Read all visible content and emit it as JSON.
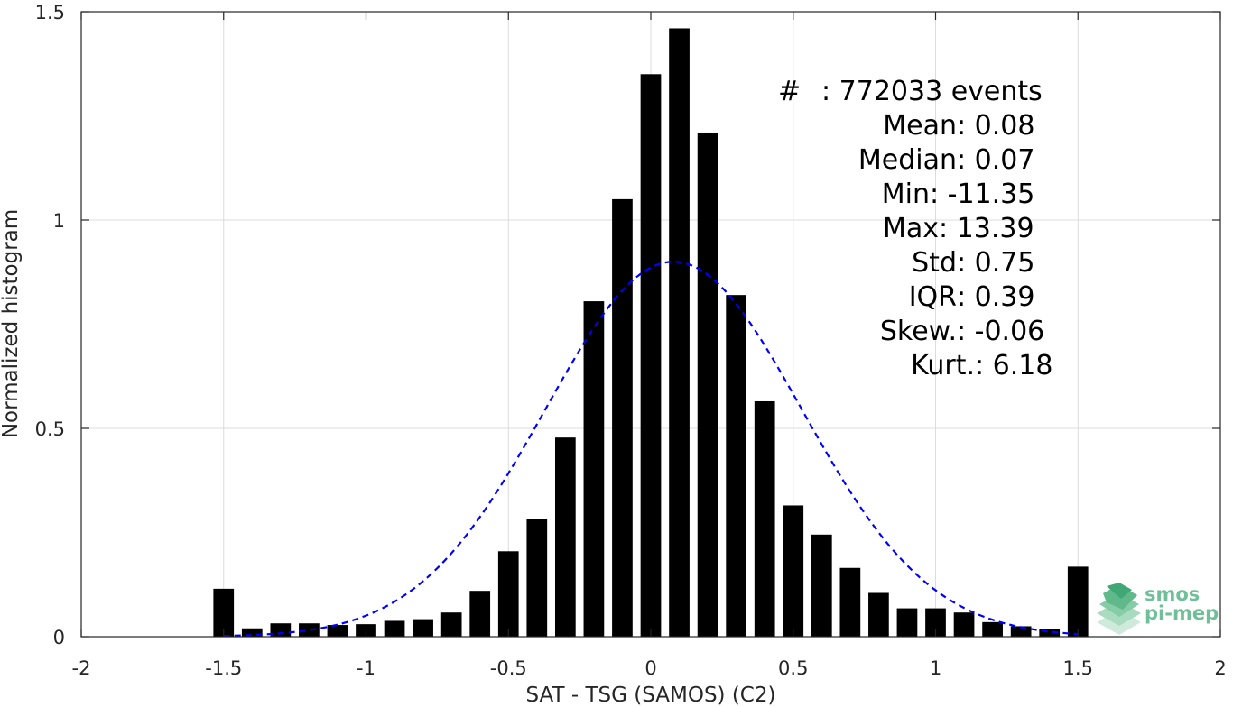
{
  "chart_data": {
    "type": "bar",
    "title": "",
    "xlabel": "SAT - TSG (SAMOS) (C2)",
    "ylabel": "Normalized histogram",
    "xlim": [
      -2,
      2
    ],
    "ylim": [
      0,
      1.5
    ],
    "grid": true,
    "x_ticks": [
      -2,
      -1.5,
      -1,
      -0.5,
      0,
      0.5,
      1,
      1.5,
      2
    ],
    "x_tick_labels": [
      "-2",
      "-1.5",
      "-1",
      "-0.5",
      "0",
      "0.5",
      "1",
      "1.5",
      "2"
    ],
    "y_ticks": [
      0,
      0.5,
      1,
      1.5
    ],
    "y_tick_labels": [
      "0",
      "0.5",
      "1",
      "1.5"
    ],
    "bar_color": "#000000",
    "bins": {
      "x": [
        -1.5,
        -1.4,
        -1.3,
        -1.2,
        -1.1,
        -1.0,
        -0.9,
        -0.8,
        -0.7,
        -0.6,
        -0.5,
        -0.4,
        -0.3,
        -0.2,
        -0.1,
        0.0,
        0.1,
        0.2,
        0.3,
        0.4,
        0.5,
        0.6,
        0.7,
        0.8,
        0.9,
        1.0,
        1.1,
        1.2,
        1.3,
        1.4,
        1.5
      ],
      "values": [
        0.115,
        0.02,
        0.032,
        0.032,
        0.028,
        0.03,
        0.038,
        0.042,
        0.058,
        0.11,
        0.205,
        0.282,
        0.478,
        0.805,
        1.05,
        1.35,
        1.46,
        1.21,
        0.82,
        0.565,
        0.315,
        0.245,
        0.165,
        0.105,
        0.068,
        0.068,
        0.058,
        0.035,
        0.025,
        0.018,
        0.168
      ]
    },
    "fit": {
      "type": "gaussian",
      "mean": 0.08,
      "std": 0.45,
      "peak": 0.9,
      "x_range": [
        -1.5,
        1.5
      ],
      "color": "#0000ff",
      "style": "dashed"
    }
  },
  "stats": [
    {
      "label": "#  ",
      "value": ": 772033 events"
    },
    {
      "label": "Mean ",
      "value": ": 0.08"
    },
    {
      "label": "Median ",
      "value": ": 0.07"
    },
    {
      "label": "Min ",
      "value": ": -11.35"
    },
    {
      "label": "Max ",
      "value": ": 13.39"
    },
    {
      "label": "Std ",
      "value": ": 0.75"
    },
    {
      "label": "IQR ",
      "value": ": 0.39"
    },
    {
      "label": "Skew. ",
      "value": ": -0.06"
    },
    {
      "label": "Kurt. ",
      "value": ": 6.18"
    }
  ],
  "logo": {
    "line1": "smos",
    "line2": "pi-mep",
    "color": "#6fbf98"
  }
}
